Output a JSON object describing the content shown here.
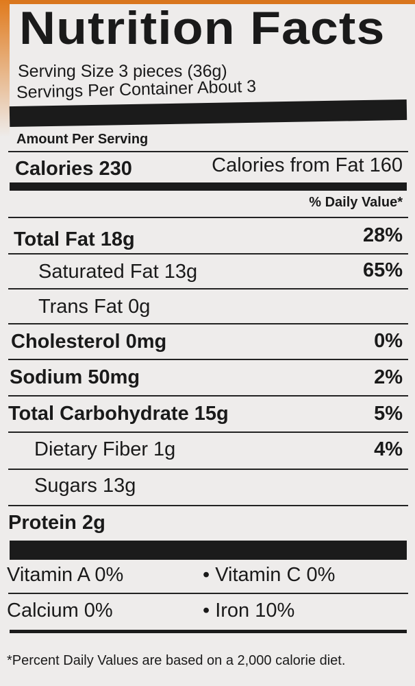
{
  "title": "Nutrition Facts",
  "serving_size": "Serving Size 3 pieces (36g)",
  "servings_per_container": "Servings Per Container About 3",
  "amount_per_serving": "Amount Per Serving",
  "calories": "Calories 230",
  "calories_from_fat": "Calories from Fat 160",
  "daily_value_header": "% Daily Value*",
  "rows": [
    {
      "label": "Total Fat 18g",
      "dv": "28%"
    },
    {
      "label": "Saturated Fat 13g",
      "dv": "65%"
    },
    {
      "label": "Trans Fat 0g",
      "dv": ""
    },
    {
      "label": "Cholesterol 0mg",
      "dv": "0%"
    },
    {
      "label": "Sodium 50mg",
      "dv": "2%"
    },
    {
      "label": "Total Carbohydrate 15g",
      "dv": "5%"
    },
    {
      "label": "Dietary Fiber 1g",
      "dv": "4%"
    },
    {
      "label": "Sugars 13g",
      "dv": ""
    },
    {
      "label": "Protein 2g",
      "dv": ""
    }
  ],
  "vitamins": [
    {
      "left": "Vitamin A 0%",
      "right": "• Vitamin C 0%"
    },
    {
      "left": "Calcium 0%",
      "right": "• Iron 10%"
    }
  ],
  "footnote": "*Percent Daily Values are based on a 2,000 calorie diet."
}
